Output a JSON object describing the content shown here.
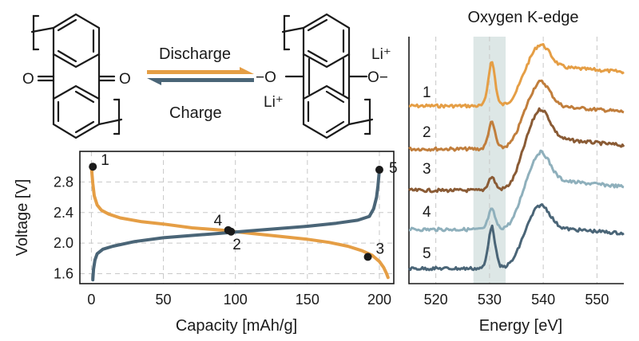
{
  "colors": {
    "discharge": "#E59E45",
    "charge": "#4A6577",
    "spectra": [
      "#E59E45",
      "#C17E3C",
      "#8A5B35",
      "#8FB0BC",
      "#4A6577"
    ],
    "highlight": "#DDE7E6",
    "marker": "#1a1a1a"
  },
  "scheme": {
    "discharge_label": "Discharge",
    "charge_label": "Charge",
    "left_o1": "O",
    "left_o2": "O",
    "right_o1": "−O",
    "right_o2": "O−",
    "li_right": "Li⁺",
    "li_left": "Li⁺"
  },
  "chart_data": [
    {
      "type": "line",
      "xlabel": "Capacity [mAh/g]",
      "ylabel": "Voltage [V]",
      "xlim": [
        -8,
        210
      ],
      "ylim": [
        1.47,
        3.2
      ],
      "xticks": [
        0,
        50,
        100,
        150,
        200
      ],
      "yticks": [
        1.6,
        2.0,
        2.4,
        2.8
      ],
      "ytick_labels": [
        "1.6",
        "2.0",
        "2.4",
        "2.8"
      ],
      "grid": true,
      "series": [
        {
          "role": "discharge",
          "points": [
            [
              0,
              3.0
            ],
            [
              1,
              2.78
            ],
            [
              2,
              2.62
            ],
            [
              4,
              2.5
            ],
            [
              7,
              2.43
            ],
            [
              12,
              2.38
            ],
            [
              20,
              2.33
            ],
            [
              35,
              2.28
            ],
            [
              50,
              2.25
            ],
            [
              70,
              2.2
            ],
            [
              90,
              2.17
            ],
            [
              110,
              2.13
            ],
            [
              130,
              2.09
            ],
            [
              150,
              2.05
            ],
            [
              165,
              2.01
            ],
            [
              178,
              1.96
            ],
            [
              188,
              1.9
            ],
            [
              195,
              1.84
            ],
            [
              200,
              1.76
            ],
            [
              203,
              1.68
            ],
            [
              205,
              1.6
            ],
            [
              206,
              1.55
            ]
          ]
        },
        {
          "role": "charge",
          "points": [
            [
              1,
              1.52
            ],
            [
              1.5,
              1.66
            ],
            [
              2.5,
              1.78
            ],
            [
              4,
              1.86
            ],
            [
              8,
              1.92
            ],
            [
              15,
              1.96
            ],
            [
              30,
              2.02
            ],
            [
              50,
              2.07
            ],
            [
              70,
              2.1
            ],
            [
              90,
              2.13
            ],
            [
              110,
              2.16
            ],
            [
              130,
              2.19
            ],
            [
              150,
              2.22
            ],
            [
              170,
              2.26
            ],
            [
              185,
              2.3
            ],
            [
              193,
              2.35
            ],
            [
              196,
              2.45
            ],
            [
              198,
              2.6
            ],
            [
              199,
              2.75
            ],
            [
              200,
              2.96
            ]
          ]
        }
      ],
      "markers": [
        {
          "label": "1",
          "x": 1,
          "y": 3.0
        },
        {
          "label": "2",
          "x": 97,
          "y": 2.15
        },
        {
          "label": "3",
          "x": 192,
          "y": 1.82
        },
        {
          "label": "4",
          "x": 95,
          "y": 2.17
        },
        {
          "label": "5",
          "x": 200,
          "y": 2.96
        }
      ]
    },
    {
      "type": "line",
      "title": "Oxygen K-edge",
      "xlabel": "Energy [eV]",
      "xlim": [
        515,
        555
      ],
      "xticks": [
        520,
        530,
        540,
        550
      ],
      "highlight_range": [
        527,
        533
      ],
      "grid": true,
      "series": [
        {
          "name": "1"
        },
        {
          "name": "2"
        },
        {
          "name": "3"
        },
        {
          "name": "4"
        },
        {
          "name": "5"
        }
      ]
    }
  ]
}
